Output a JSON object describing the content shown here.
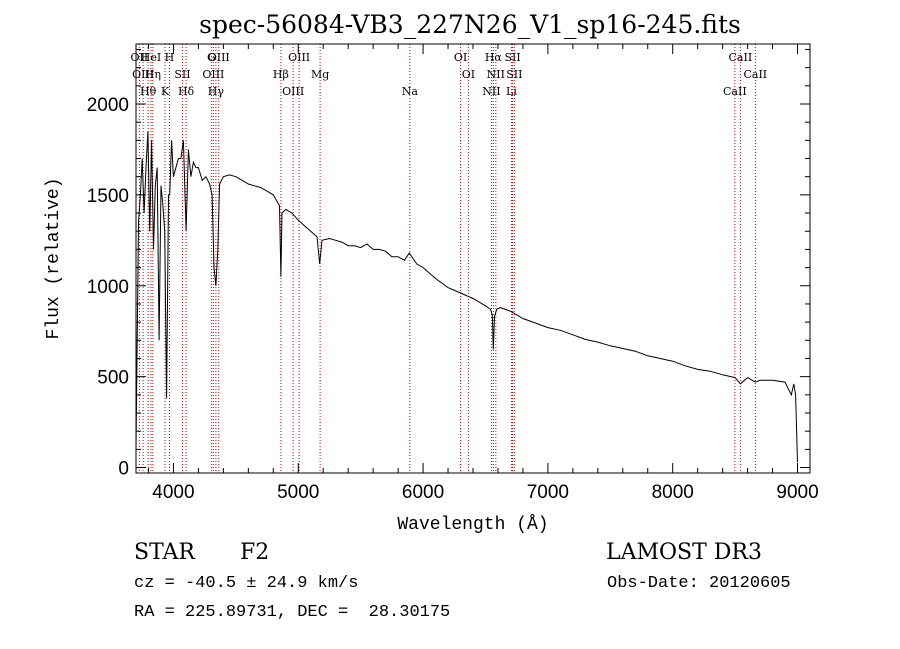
{
  "chart_data": {
    "type": "line",
    "title": "spec-56084-VB3_227N26_V1_sp16-245.fits",
    "xlabel": "Wavelength (Å)",
    "ylabel": "Flux (relative)",
    "xlim": [
      3700,
      9100
    ],
    "ylim": [
      -30,
      2330
    ],
    "x_ticks": [
      4000,
      5000,
      6000,
      7000,
      8000,
      9000
    ],
    "x_tick_labels": [
      "4000",
      "5000",
      "6000",
      "7000",
      "8000",
      "9000"
    ],
    "y_ticks": [
      0,
      500,
      1000,
      1500,
      2000
    ],
    "y_tick_labels": [
      "0",
      "500",
      "1000",
      "1500",
      "2000"
    ],
    "series": [
      {
        "name": "spectrum",
        "x": [
          3700,
          3720,
          3735,
          3750,
          3765,
          3780,
          3795,
          3810,
          3825,
          3840,
          3855,
          3870,
          3885,
          3900,
          3915,
          3930,
          3945,
          3960,
          3970,
          3985,
          4000,
          4020,
          4040,
          4060,
          4080,
          4101,
          4120,
          4140,
          4160,
          4180,
          4200,
          4230,
          4260,
          4290,
          4310,
          4325,
          4340,
          4355,
          4370,
          4400,
          4450,
          4500,
          4550,
          4600,
          4650,
          4700,
          4750,
          4800,
          4850,
          4861,
          4870,
          4900,
          4950,
          5000,
          5050,
          5100,
          5150,
          5172,
          5190,
          5250,
          5300,
          5350,
          5400,
          5450,
          5500,
          5550,
          5600,
          5650,
          5700,
          5750,
          5800,
          5850,
          5890,
          5950,
          6000,
          6100,
          6200,
          6300,
          6400,
          6450,
          6500,
          6540,
          6555,
          6563,
          6572,
          6590,
          6620,
          6700,
          6800,
          6900,
          7000,
          7100,
          7200,
          7300,
          7400,
          7500,
          7600,
          7700,
          7800,
          7900,
          8000,
          8100,
          8200,
          8300,
          8400,
          8500,
          8542,
          8600,
          8662,
          8700,
          8800,
          8900,
          8950,
          8970,
          8985,
          9000
        ],
        "y": [
          100,
          1350,
          1500,
          1700,
          1400,
          1650,
          1850,
          1300,
          1800,
          1200,
          1550,
          1650,
          700,
          1550,
          1450,
          1300,
          380,
          1500,
          1500,
          1800,
          1600,
          1650,
          1700,
          1700,
          1800,
          1300,
          1750,
          1600,
          1680,
          1650,
          1650,
          1580,
          1600,
          1560,
          1500,
          1100,
          1000,
          1200,
          1560,
          1600,
          1610,
          1600,
          1580,
          1560,
          1550,
          1540,
          1520,
          1500,
          1440,
          1050,
          1400,
          1420,
          1400,
          1360,
          1330,
          1300,
          1270,
          1120,
          1250,
          1260,
          1250,
          1240,
          1220,
          1220,
          1210,
          1230,
          1200,
          1200,
          1190,
          1160,
          1160,
          1140,
          1180,
          1120,
          1100,
          1040,
          990,
          960,
          930,
          910,
          890,
          870,
          840,
          650,
          830,
          870,
          880,
          860,
          820,
          795,
          770,
          755,
          730,
          705,
          690,
          670,
          655,
          640,
          615,
          600,
          585,
          560,
          540,
          530,
          510,
          495,
          460,
          495,
          470,
          480,
          480,
          470,
          400,
          460,
          400,
          30
        ]
      }
    ],
    "line_markers": [
      {
        "label": "OII",
        "wavelength": 3727
      },
      {
        "label": "OIII",
        "wavelength": 3757
      },
      {
        "label": "Hθ",
        "wavelength": 3797
      },
      {
        "label": "HeI",
        "wavelength": 3820
      },
      {
        "label": "Hη",
        "wavelength": 3835
      },
      {
        "label": "K",
        "wavelength": 3933
      },
      {
        "label": "H",
        "wavelength": 3968
      },
      {
        "label": "SII",
        "wavelength": 4072
      },
      {
        "label": "Hδ",
        "wavelength": 4101
      },
      {
        "label": "G",
        "wavelength": 4304
      },
      {
        "label": "OIII",
        "wavelength": 4320
      },
      {
        "label": "Hγ",
        "wavelength": 4340
      },
      {
        "label": "OIII",
        "wavelength": 4363
      },
      {
        "label": "Hβ",
        "wavelength": 4861
      },
      {
        "label": "OIII",
        "wavelength": 4959
      },
      {
        "label": "OIII",
        "wavelength": 5007
      },
      {
        "label": "Mg",
        "wavelength": 5175
      },
      {
        "label": "Na",
        "wavelength": 5894
      },
      {
        "label": "OI",
        "wavelength": 6300
      },
      {
        "label": "OI",
        "wavelength": 6363
      },
      {
        "label": "NII",
        "wavelength": 6548
      },
      {
        "label": "Hα",
        "wavelength": 6563
      },
      {
        "label": "NII",
        "wavelength": 6583
      },
      {
        "label": "Li",
        "wavelength": 6708
      },
      {
        "label": "SII",
        "wavelength": 6717
      },
      {
        "label": "SII",
        "wavelength": 6731
      },
      {
        "label": "CaII",
        "wavelength": 8498
      },
      {
        "label": "CaII",
        "wavelength": 8542
      },
      {
        "label": "CaII",
        "wavelength": 8662
      }
    ]
  },
  "info": {
    "object_class": "STAR",
    "subclass": "F2",
    "survey": "LAMOST DR3",
    "redshift": "cz = -40.5 ± 24.9 km/s",
    "obs_date": "Obs-Date: 20120605",
    "radec": "RA = 225.89731, DEC =  28.30175"
  }
}
